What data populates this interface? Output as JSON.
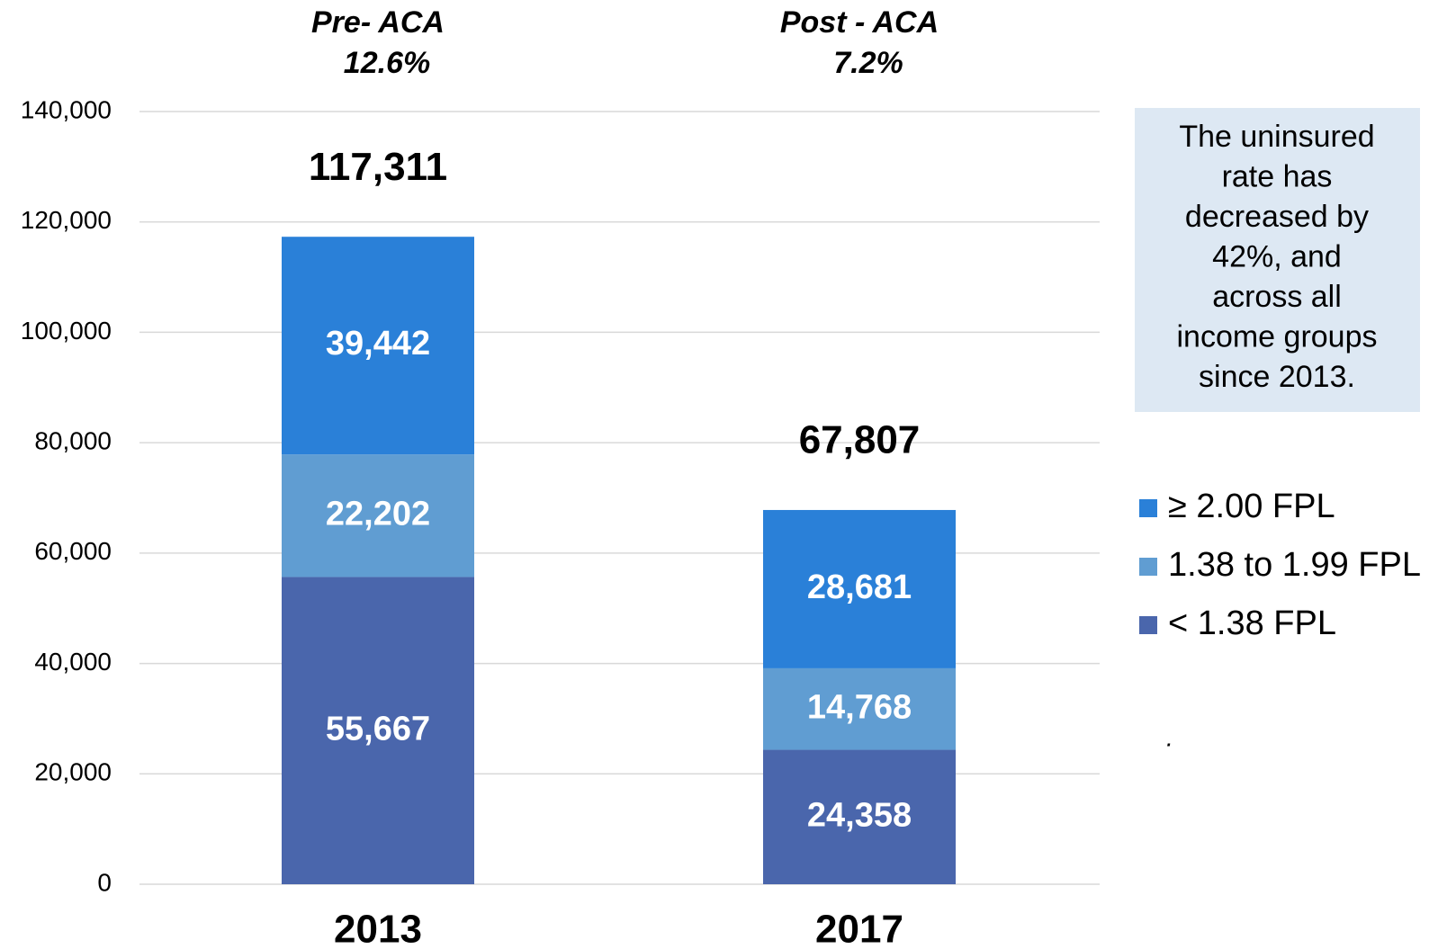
{
  "chart_data": {
    "type": "stacked_bar",
    "categories": [
      "2013",
      "2017"
    ],
    "column_headers": [
      {
        "label": "Pre- ACA",
        "rate": "12.6%"
      },
      {
        "label": "Post - ACA",
        "rate": "7.2%"
      }
    ],
    "series": [
      {
        "name": "< 1.38 FPL",
        "color": "#4a66ac",
        "values": [
          55667,
          24358
        ],
        "value_labels": [
          "55,667",
          "24,358"
        ]
      },
      {
        "name": "1.38 to 1.99 FPL",
        "color": "#609dd2",
        "values": [
          22202,
          14768
        ],
        "value_labels": [
          "22,202",
          "14,768"
        ]
      },
      {
        "name": "≥ 2.00 FPL",
        "color": "#2a80d8",
        "values": [
          39442,
          28681
        ],
        "value_labels": [
          "39,442",
          "28,681"
        ]
      }
    ],
    "totals": [
      117311,
      67807
    ],
    "total_labels": [
      "117,311",
      "67,807"
    ],
    "ylim": [
      0,
      140000
    ],
    "yticks": [
      0,
      {
        "value": 20000,
        "label": "20,000"
      },
      {
        "value": 40000,
        "label": "40,000"
      },
      {
        "value": 60000,
        "label": "60,000"
      },
      {
        "value": 80000,
        "label": "80,000"
      },
      {
        "value": 100000,
        "label": "100,000"
      },
      {
        "value": 120000,
        "label": "120,000"
      },
      {
        "value": 140000,
        "label": "140,000"
      }
    ],
    "grid": true,
    "note": [
      "The uninsured",
      "rate has",
      "decreased by",
      "42%, and",
      "across all",
      "income groups",
      "since 2013."
    ],
    "footnote": "."
  }
}
